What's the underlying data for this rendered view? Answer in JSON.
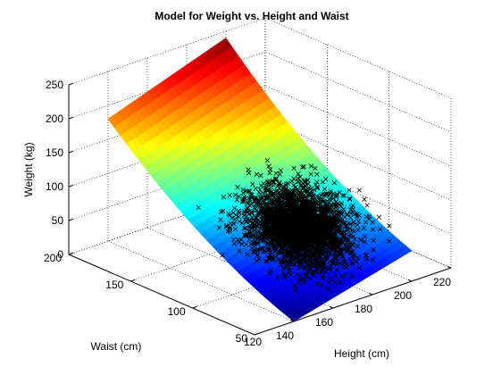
{
  "chart_data": {
    "type": "surface+scatter",
    "title": "Model for Weight vs. Height and Waist",
    "xlabel": "Height (cm)",
    "ylabel": "Waist (cm)",
    "zlabel": "Weight (kg)",
    "xlim": [
      120,
      220
    ],
    "ylim": [
      50,
      200
    ],
    "zlim": [
      0,
      250
    ],
    "x_ticks": [
      "140",
      "160",
      "180",
      "200",
      "220"
    ],
    "x_tick_values": [
      140,
      160,
      180,
      200,
      220
    ],
    "y_ticks": [
      "50",
      "100",
      "150",
      "200"
    ],
    "y_tick_values": [
      50,
      100,
      150,
      200
    ],
    "z_ticks": [
      "0",
      "50",
      "100",
      "150",
      "200",
      "250"
    ],
    "z_tick_values": [
      0,
      50,
      100,
      150,
      200,
      250
    ],
    "grid": true,
    "colormap": "jet",
    "surface": {
      "description": "fitted model surface",
      "corners": [
        {
          "height": 140,
          "waist": 50,
          "weight": 0
        },
        {
          "height": 200,
          "waist": 50,
          "weight": 45
        },
        {
          "height": 140,
          "waist": 200,
          "weight": 180
        },
        {
          "height": 200,
          "waist": 200,
          "weight": 240
        }
      ],
      "curvature": "convex in waist"
    },
    "scatter": {
      "marker": "x",
      "color": "#000000",
      "approx_count": 3000,
      "height_mean": 169,
      "height_sd": 10,
      "waist_mean": 92,
      "waist_sd": 13,
      "weight_mean": 78,
      "weight_sd": 17
    }
  }
}
